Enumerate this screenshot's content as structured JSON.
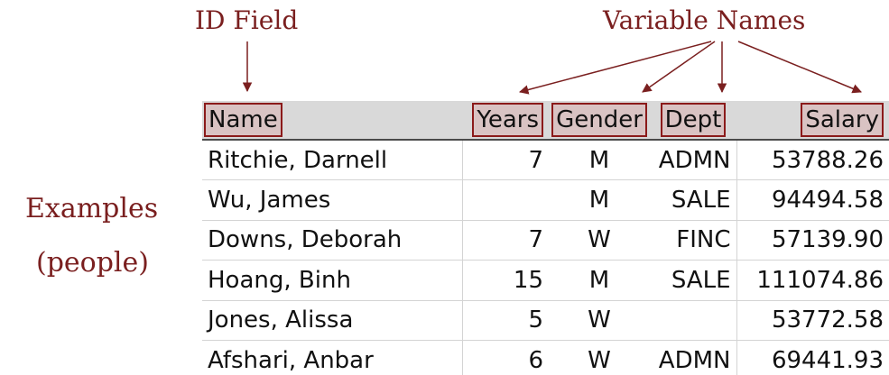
{
  "labels": {
    "id_field": "ID Field",
    "variable_names": "Variable Names",
    "examples": "Examples",
    "people": "(people)"
  },
  "table": {
    "headers": [
      "Name",
      "Years",
      "Gender",
      "Dept",
      "Salary"
    ],
    "rows": [
      [
        "Ritchie, Darnell",
        "7",
        "M",
        "ADMN",
        "53788.26"
      ],
      [
        "Wu, James",
        "",
        "M",
        "SALE",
        "94494.58"
      ],
      [
        "Downs, Deborah",
        "7",
        "W",
        "FINC",
        "57139.90"
      ],
      [
        "Hoang, Binh",
        "15",
        "M",
        "SALE",
        "111074.86"
      ],
      [
        "Jones, Alissa",
        "5",
        "W",
        "",
        "53772.58"
      ],
      [
        "Afshari, Anbar",
        "6",
        "W",
        "ADMN",
        "69441.93"
      ]
    ]
  },
  "colors": {
    "annotation": "#7a1f1f",
    "header_box_border": "#8b1a1a",
    "header_box_fill": "#d9c3c3",
    "header_row_fill": "#d9d9d9"
  }
}
